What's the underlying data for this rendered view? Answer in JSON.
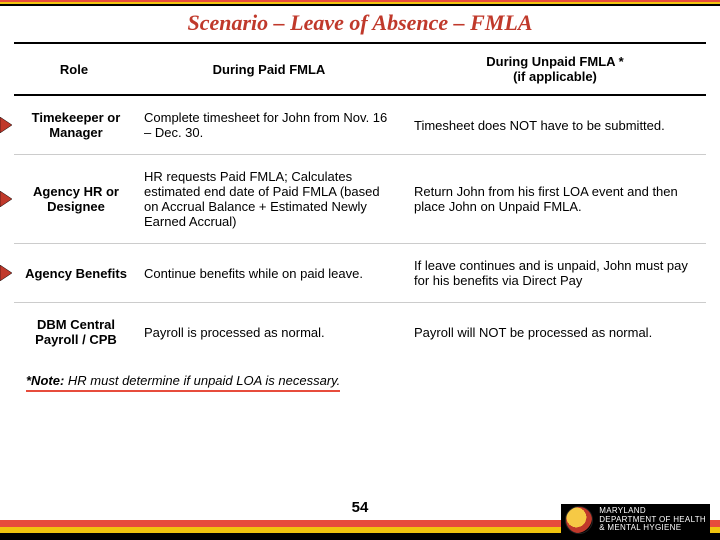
{
  "title": "Scenario – Leave of Absence – FMLA",
  "title_color": "#c0392b",
  "title_fontsize": 22,
  "banner_colors": {
    "top": "#e74c3c",
    "mid": "#f1c40f",
    "bot": "#000000"
  },
  "header": {
    "role": "Role",
    "paid": "During Paid FMLA",
    "unpaid_line1": "During Unpaid FMLA *",
    "unpaid_line2": "(if applicable)"
  },
  "rows": [
    {
      "role": "Timekeeper or Manager",
      "paid": "Complete timesheet for John from Nov. 16 – Dec. 30.",
      "unpaid": "Timesheet does NOT have to be submitted.",
      "bullet_color": "#c0392b"
    },
    {
      "role": "Agency HR or Designee",
      "paid": "HR requests Paid FMLA; Calculates estimated end date of Paid FMLA (based on Accrual Balance + Estimated Newly Earned Accrual)",
      "unpaid": "Return John from his first LOA event and then place John on Unpaid FMLA.",
      "bullet_color": "#c0392b"
    },
    {
      "role": "Agency Benefits",
      "paid": "Continue benefits while on paid leave.",
      "unpaid": "If leave continues and is unpaid, John must pay for his benefits via Direct Pay",
      "bullet_color": "#c0392b"
    },
    {
      "role": "DBM Central Payroll / CPB",
      "paid": "Payroll is processed as normal.",
      "unpaid": "Payroll will NOT be processed as normal.",
      "bullet_color": null
    }
  ],
  "footnote": {
    "lead": "*Note:",
    "text": "HR must determine if unpaid LOA is necessary.",
    "underline_color": "#e74c3c"
  },
  "page_number": "54",
  "footer_bars": [
    "#e74c3c",
    "#f1c40f",
    "#000000"
  ],
  "logo": {
    "line1": "MARYLAND",
    "line2": "DEPARTMENT OF HEALTH",
    "line3": "& MENTAL HYGIENE"
  }
}
